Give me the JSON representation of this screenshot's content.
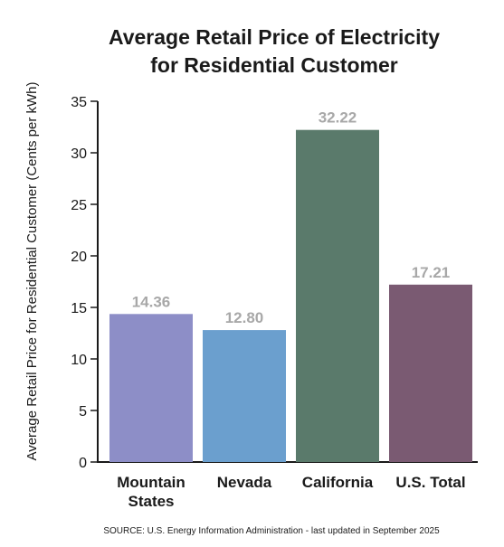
{
  "chart_data": {
    "type": "bar",
    "title": "Average Retail Price of Electricity",
    "subtitle": "for Residential Customer",
    "ylabel": "Average Retail Price for Residential Customer (Cents per kWh)",
    "xlabel": "",
    "ylim": [
      0,
      35
    ],
    "yticks": [
      0,
      5,
      10,
      15,
      20,
      25,
      30,
      35
    ],
    "grid": false,
    "legend": "none",
    "categories": [
      [
        "Mountain",
        "States"
      ],
      [
        "Nevada"
      ],
      [
        "California"
      ],
      [
        "U.S. Total"
      ]
    ],
    "values": [
      14.36,
      12.8,
      32.22,
      17.21
    ],
    "value_labels": [
      "14.36",
      "12.80",
      "32.22",
      "17.21"
    ],
    "colors": [
      "#8d8ec7",
      "#6b9fce",
      "#5a7a6b",
      "#7a5a72"
    ],
    "value_label_color": "#a8a8a8",
    "source": "SOURCE: U.S. Energy Information Administration - last updated in September 2025"
  }
}
